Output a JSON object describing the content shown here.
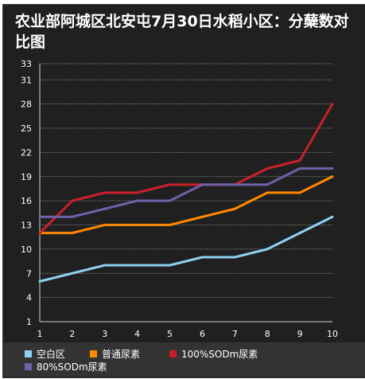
{
  "chart_data": {
    "type": "line",
    "title": "农业部阿城区北安屯7月30日水稻小区：分蘖数对比图",
    "x": [
      "1",
      "2",
      "3",
      "4",
      "5",
      "6",
      "7",
      "8",
      "9",
      "10"
    ],
    "yticks": [
      "1",
      "4",
      "7",
      "10",
      "13",
      "16",
      "19",
      "22",
      "25",
      "28",
      "31",
      "33"
    ],
    "ylim": [
      1,
      33
    ],
    "grid": true,
    "legend_position": "bottom",
    "series": [
      {
        "name": "空白区",
        "color": "#8fd0f0",
        "values": [
          6,
          7,
          8,
          8,
          8,
          9,
          9,
          10,
          12,
          14
        ]
      },
      {
        "name": "普通尿素",
        "color": "#ff8800",
        "values": [
          12,
          12,
          13,
          13,
          13,
          14,
          15,
          17,
          17,
          19
        ]
      },
      {
        "name": "100%SODm尿素",
        "color": "#c8202a",
        "values": [
          12,
          16,
          17,
          17,
          18,
          18,
          18,
          20,
          21,
          28
        ]
      },
      {
        "name": "80%SODm尿素",
        "color": "#7060a8",
        "values": [
          14,
          14,
          15,
          16,
          16,
          18,
          18,
          18,
          20,
          20
        ]
      }
    ]
  }
}
